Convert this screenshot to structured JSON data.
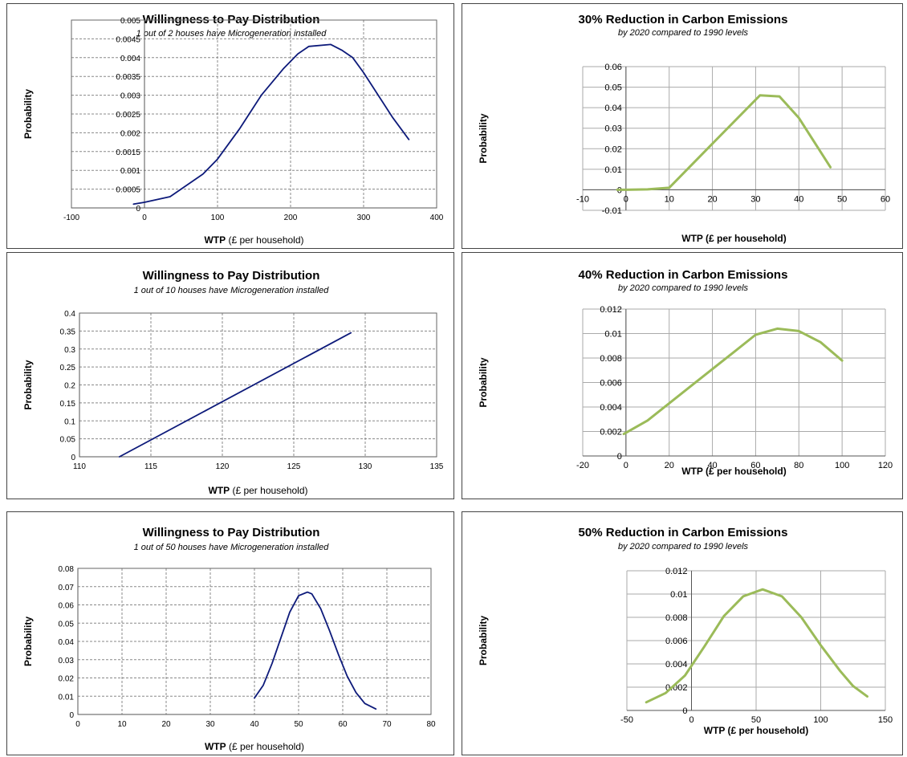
{
  "chart_data": [
    {
      "type": "line",
      "title": "Willingness to Pay Distribution",
      "subtitle": "1 out of 2 houses have Microgeneration installed",
      "xlabel_bold": "WTP",
      "xlabel_rest": " (£ per household)",
      "ylabel": "Probability",
      "xlim": [
        -100,
        400
      ],
      "ylim": [
        0,
        0.005
      ],
      "x_ticks": [
        -100,
        0,
        100,
        200,
        300,
        400
      ],
      "y_ticks": [
        0,
        0.0005,
        0.001,
        0.0015,
        0.002,
        0.0025,
        0.003,
        0.0035,
        0.004,
        0.0045,
        0.005
      ],
      "x_tick_labels": [
        "-100",
        "0",
        "100",
        "200",
        "300",
        "400"
      ],
      "y_tick_labels": [
        "0",
        "0.0005",
        "0.001",
        "0.0015",
        "0.002",
        "0.0025",
        "0.003",
        "0.0035",
        "0.004",
        "0.0045",
        "0.005"
      ],
      "grid": "dashed",
      "series_color": "#0d1a7a",
      "series": [
        {
          "x": [
            -15,
            0,
            35,
            80,
            100,
            130,
            160,
            190,
            210,
            225,
            255,
            270,
            285,
            300,
            320,
            340,
            362
          ],
          "y": [
            0.0001,
            0.00015,
            0.0003,
            0.0009,
            0.0013,
            0.0021,
            0.003,
            0.0037,
            0.0041,
            0.0043,
            0.00435,
            0.0042,
            0.004,
            0.0036,
            0.003,
            0.0024,
            0.00182
          ]
        }
      ]
    },
    {
      "type": "line",
      "title": "30% Reduction in Carbon Emissions",
      "subtitle": "by 2020 compared to 1990 levels",
      "xlabel_bold": "WTP (£ per household)",
      "xlabel_rest": "",
      "ylabel": "Probability",
      "xlim": [
        -10,
        60
      ],
      "ylim": [
        -0.01,
        0.06
      ],
      "x_ticks": [
        -10,
        0,
        10,
        20,
        30,
        40,
        50,
        60
      ],
      "y_ticks": [
        -0.01,
        0,
        0.01,
        0.02,
        0.03,
        0.04,
        0.05,
        0.06
      ],
      "x_tick_labels": [
        "-10",
        "0",
        "10",
        "20",
        "30",
        "40",
        "50",
        "60"
      ],
      "y_tick_labels": [
        "-0.01",
        "0",
        "0.01",
        "0.02",
        "0.03",
        "0.04",
        "0.05",
        "0.06"
      ],
      "grid": "solid",
      "series_color": "#9bbb59",
      "series": [
        {
          "x": [
            -2,
            0,
            5,
            10,
            20,
            31,
            35.5,
            40,
            47.3
          ],
          "y": [
            0,
            0,
            0.0002,
            0.001,
            0.0225,
            0.046,
            0.0455,
            0.035,
            0.011
          ]
        }
      ]
    },
    {
      "type": "line",
      "title": "Willingness to Pay Distribution",
      "subtitle": "1 out of 10 houses have Microgeneration installed",
      "xlabel_bold": "WTP",
      "xlabel_rest": " (£ per household)",
      "ylabel": "Probability",
      "xlim": [
        110,
        135
      ],
      "ylim": [
        0,
        0.4
      ],
      "x_ticks": [
        110,
        115,
        120,
        125,
        130,
        135
      ],
      "y_ticks": [
        0,
        0.05,
        0.1,
        0.15,
        0.2,
        0.25,
        0.3,
        0.35,
        0.4
      ],
      "x_tick_labels": [
        "110",
        "115",
        "120",
        "125",
        "130",
        "135"
      ],
      "y_tick_labels": [
        "0",
        "0.05",
        "0.1",
        "0.15",
        "0.2",
        "0.25",
        "0.3",
        "0.35",
        "0.4"
      ],
      "grid": "dashed",
      "series_color": "#0d1a7a",
      "series": [
        {
          "x": [
            112.8,
            129
          ],
          "y": [
            0,
            0.345
          ]
        }
      ]
    },
    {
      "type": "line",
      "title": "40% Reduction in Carbon Emissions",
      "subtitle": "by 2020 compared to 1990 levels",
      "xlabel_bold": "WTP (£ per household)",
      "xlabel_rest": "",
      "ylabel": "Probability",
      "xlim": [
        -20,
        120
      ],
      "ylim": [
        0,
        0.012
      ],
      "x_ticks": [
        -20,
        0,
        20,
        40,
        60,
        80,
        100,
        120
      ],
      "y_ticks": [
        0,
        0.002,
        0.004,
        0.006,
        0.008,
        0.01,
        0.012
      ],
      "x_tick_labels": [
        "-20",
        "0",
        "20",
        "40",
        "60",
        "80",
        "100",
        "120"
      ],
      "y_tick_labels": [
        "0",
        "0.002",
        "0.004",
        "0.006",
        "0.008",
        "0.01",
        "0.012"
      ],
      "grid": "solid",
      "series_color": "#9bbb59",
      "series": [
        {
          "x": [
            -1,
            10,
            20,
            30,
            40,
            50,
            60,
            70,
            80,
            90,
            100
          ],
          "y": [
            0.0018,
            0.0029,
            0.0043,
            0.0057,
            0.0071,
            0.0085,
            0.0099,
            0.0104,
            0.0102,
            0.0093,
            0.0078
          ]
        }
      ]
    },
    {
      "type": "line",
      "title": "Willingness to Pay Distribution",
      "subtitle": "1 out of 50 houses have Microgeneration installed",
      "xlabel_bold": "WTP",
      "xlabel_rest": " (£ per household)",
      "ylabel": "Probability",
      "xlim": [
        0,
        80
      ],
      "ylim": [
        0,
        0.08
      ],
      "x_ticks": [
        0,
        10,
        20,
        30,
        40,
        50,
        60,
        70,
        80
      ],
      "y_ticks": [
        0,
        0.01,
        0.02,
        0.03,
        0.04,
        0.05,
        0.06,
        0.07,
        0.08
      ],
      "x_tick_labels": [
        "0",
        "10",
        "20",
        "30",
        "40",
        "50",
        "60",
        "70",
        "80"
      ],
      "y_tick_labels": [
        "0",
        "0.01",
        "0.02",
        "0.03",
        "0.04",
        "0.05",
        "0.06",
        "0.07",
        "0.08"
      ],
      "grid": "dashed",
      "series_color": "#0d1a7a",
      "series": [
        {
          "x": [
            40,
            42,
            44,
            46,
            48,
            50,
            52,
            53,
            55,
            57,
            59,
            61,
            63,
            65,
            67.5
          ],
          "y": [
            0.009,
            0.016,
            0.028,
            0.042,
            0.056,
            0.065,
            0.067,
            0.066,
            0.058,
            0.046,
            0.033,
            0.021,
            0.012,
            0.006,
            0.003
          ]
        }
      ]
    },
    {
      "type": "line",
      "title": "50% Reduction in Carbon Emissions",
      "subtitle": "by 2020 compared to 1990 levels",
      "xlabel_bold": "WTP (£ per household)",
      "xlabel_rest": "",
      "ylabel": "Probability",
      "xlim": [
        -50,
        150
      ],
      "ylim": [
        0,
        0.012
      ],
      "x_ticks": [
        -50,
        0,
        50,
        100,
        150
      ],
      "y_ticks": [
        0,
        0.002,
        0.004,
        0.006,
        0.008,
        0.01,
        0.012
      ],
      "x_tick_labels": [
        "-50",
        "0",
        "50",
        "100",
        "150"
      ],
      "y_tick_labels": [
        "0",
        "0.002",
        "0.004",
        "0.006",
        "0.008",
        "0.01",
        "0.012"
      ],
      "grid": "solid",
      "series_color": "#9bbb59",
      "series": [
        {
          "x": [
            -35,
            -20,
            -5,
            10,
            25,
            40,
            55,
            70,
            85,
            100,
            115,
            125,
            136
          ],
          "y": [
            0.0007,
            0.0015,
            0.003,
            0.0055,
            0.0081,
            0.0098,
            0.0104,
            0.0098,
            0.008,
            0.0056,
            0.0034,
            0.0021,
            0.0012
          ]
        }
      ]
    }
  ]
}
